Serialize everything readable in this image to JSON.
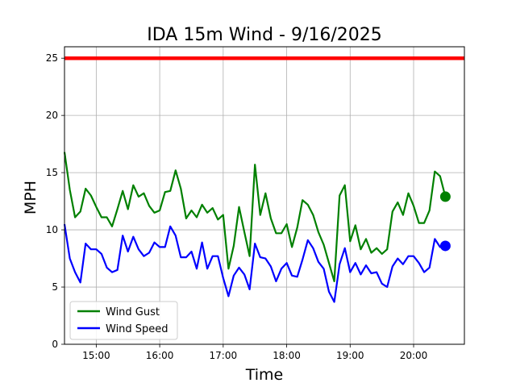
{
  "chart_data": {
    "type": "line",
    "title": "IDA 15m Wind - 9/16/2025",
    "xlabel": "Time",
    "ylabel": "MPH",
    "xlim": [
      "14:30",
      "20:48"
    ],
    "ylim": [
      0,
      26
    ],
    "xticks": [
      "15:00",
      "16:00",
      "17:00",
      "18:00",
      "19:00",
      "20:00"
    ],
    "yticks": [
      0,
      5,
      10,
      15,
      20,
      25
    ],
    "grid": true,
    "legend_position": "lower-left",
    "reference_line": {
      "value": 25,
      "color": "#ff0000"
    },
    "x": [
      "14:30",
      "14:35",
      "14:40",
      "14:45",
      "14:50",
      "14:55",
      "15:00",
      "15:05",
      "15:10",
      "15:15",
      "15:20",
      "15:25",
      "15:30",
      "15:35",
      "15:40",
      "15:45",
      "15:50",
      "15:55",
      "16:00",
      "16:05",
      "16:10",
      "16:15",
      "16:20",
      "16:25",
      "16:30",
      "16:35",
      "16:40",
      "16:45",
      "16:50",
      "16:55",
      "17:00",
      "17:05",
      "17:10",
      "17:15",
      "17:20",
      "17:25",
      "17:30",
      "17:35",
      "17:40",
      "17:45",
      "17:50",
      "17:55",
      "18:00",
      "18:05",
      "18:10",
      "18:15",
      "18:20",
      "18:25",
      "18:30",
      "18:35",
      "18:40",
      "18:45",
      "18:50",
      "18:55",
      "19:00",
      "19:05",
      "19:10",
      "19:15",
      "19:20",
      "19:25",
      "19:30",
      "19:35",
      "19:40",
      "19:45",
      "19:50",
      "19:55",
      "20:00",
      "20:05",
      "20:10",
      "20:15",
      "20:20",
      "20:25",
      "20:30"
    ],
    "series": [
      {
        "name": "Wind Gust",
        "color": "#008000",
        "values": [
          16.8,
          13.5,
          11.1,
          11.6,
          13.6,
          13.0,
          12.0,
          11.1,
          11.1,
          10.3,
          11.8,
          13.4,
          11.8,
          13.9,
          12.9,
          13.2,
          12.1,
          11.5,
          11.7,
          13.3,
          13.4,
          15.2,
          13.6,
          11.0,
          11.7,
          11.1,
          12.2,
          11.5,
          11.9,
          10.9,
          11.3,
          6.6,
          8.6,
          12.0,
          9.8,
          7.7,
          15.7,
          11.3,
          13.2,
          11.0,
          9.7,
          9.7,
          10.5,
          8.5,
          10.2,
          12.6,
          12.2,
          11.3,
          9.8,
          8.7,
          7.1,
          5.5,
          13.0,
          13.9,
          9.0,
          10.4,
          8.3,
          9.2,
          8.0,
          8.4,
          7.9,
          8.3,
          11.6,
          12.4,
          11.3,
          13.2,
          12.1,
          10.6,
          10.6,
          11.7,
          15.1,
          14.7,
          12.9
        ]
      },
      {
        "name": "Wind Speed",
        "color": "#0000ff",
        "values": [
          10.5,
          7.5,
          6.3,
          5.4,
          8.8,
          8.3,
          8.3,
          7.9,
          6.7,
          6.3,
          6.5,
          9.5,
          8.1,
          9.4,
          8.3,
          7.7,
          8.0,
          8.9,
          8.5,
          8.5,
          10.3,
          9.5,
          7.6,
          7.6,
          8.1,
          6.6,
          8.9,
          6.6,
          7.7,
          7.7,
          5.8,
          4.2,
          6.0,
          6.7,
          6.1,
          4.8,
          8.8,
          7.6,
          7.5,
          6.8,
          5.5,
          6.6,
          7.1,
          6.0,
          5.9,
          7.4,
          9.1,
          8.4,
          7.2,
          6.6,
          4.6,
          3.7,
          7.0,
          8.4,
          6.3,
          7.1,
          6.1,
          6.9,
          6.2,
          6.3,
          5.3,
          5.0,
          6.8,
          7.5,
          7.0,
          7.7,
          7.7,
          7.1,
          6.3,
          6.7,
          9.2,
          8.5,
          8.6
        ]
      }
    ]
  }
}
